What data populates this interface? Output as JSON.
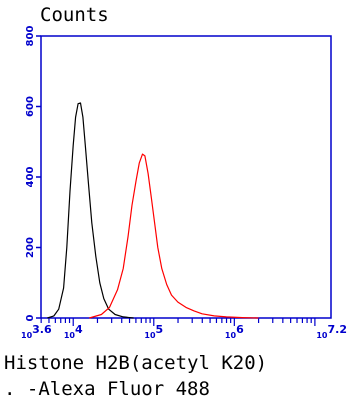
{
  "chart_data": {
    "type": "line",
    "title": "",
    "ylabel": "Counts",
    "xlabel": "Histone H2B(acetyl K20)",
    "xlabel_line2": ". -Alexa Fluor 488",
    "x_scale": "log10",
    "xlim": [
      3.6,
      7.2
    ],
    "ylim": [
      0,
      800
    ],
    "y_ticks": [
      "0",
      "200",
      "400",
      "600",
      "800"
    ],
    "x_tick_labels": [
      {
        "label": "10^3.6",
        "base": "10",
        "exp": "3.6",
        "log": 3.6
      },
      {
        "label": "10^4",
        "base": "10",
        "exp": "4",
        "log": 4
      },
      {
        "label": "10^5",
        "base": "10",
        "exp": "5",
        "log": 5
      },
      {
        "label": "10^6",
        "base": "10",
        "exp": "6",
        "log": 6
      },
      {
        "label": "10^7.2",
        "base": "10",
        "exp": "7.2",
        "log": 7.2
      }
    ],
    "grid": false,
    "axis_color": "#0000cc",
    "series": [
      {
        "color": "#000000",
        "points": [
          [
            3.68,
            0
          ],
          [
            3.76,
            6
          ],
          [
            3.82,
            25
          ],
          [
            3.88,
            85
          ],
          [
            3.92,
            200
          ],
          [
            3.96,
            360
          ],
          [
            4.0,
            490
          ],
          [
            4.03,
            570
          ],
          [
            4.06,
            608
          ],
          [
            4.09,
            610
          ],
          [
            4.12,
            570
          ],
          [
            4.15,
            490
          ],
          [
            4.19,
            380
          ],
          [
            4.23,
            270
          ],
          [
            4.28,
            175
          ],
          [
            4.33,
            100
          ],
          [
            4.38,
            55
          ],
          [
            4.44,
            25
          ],
          [
            4.52,
            10
          ],
          [
            4.62,
            3
          ],
          [
            4.75,
            0
          ]
        ]
      },
      {
        "color": "#ff0000",
        "points": [
          [
            4.2,
            0
          ],
          [
            4.35,
            10
          ],
          [
            4.45,
            30
          ],
          [
            4.55,
            80
          ],
          [
            4.62,
            140
          ],
          [
            4.68,
            230
          ],
          [
            4.73,
            320
          ],
          [
            4.78,
            390
          ],
          [
            4.82,
            440
          ],
          [
            4.86,
            465
          ],
          [
            4.89,
            460
          ],
          [
            4.93,
            410
          ],
          [
            4.97,
            340
          ],
          [
            5.01,
            270
          ],
          [
            5.05,
            200
          ],
          [
            5.1,
            140
          ],
          [
            5.16,
            95
          ],
          [
            5.22,
            65
          ],
          [
            5.3,
            45
          ],
          [
            5.4,
            30
          ],
          [
            5.5,
            20
          ],
          [
            5.6,
            12
          ],
          [
            5.75,
            6
          ],
          [
            5.9,
            3
          ],
          [
            6.1,
            1
          ],
          [
            6.3,
            0
          ]
        ]
      }
    ]
  }
}
